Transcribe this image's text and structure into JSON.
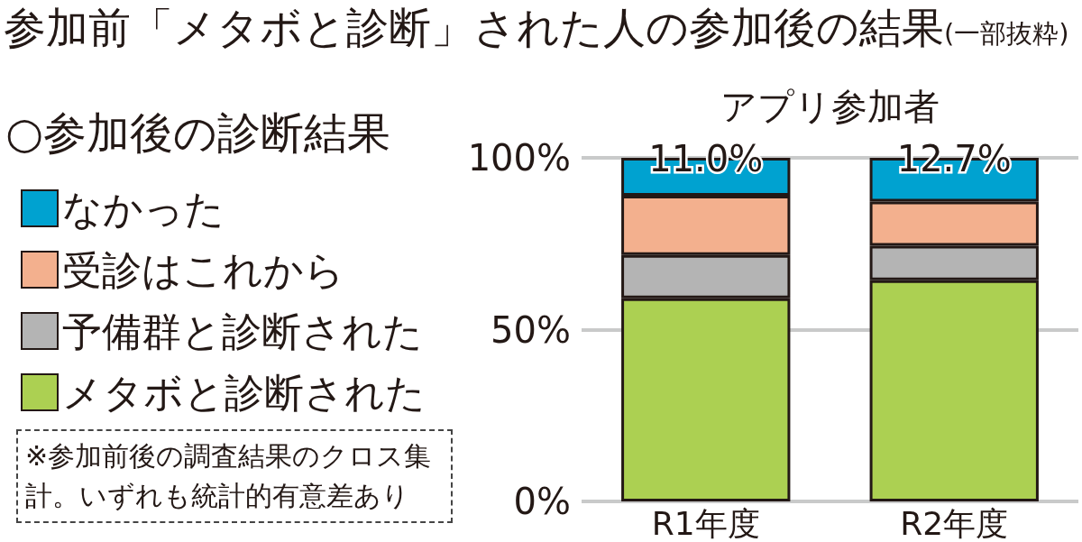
{
  "chart_data": {
    "type": "bar",
    "title": "参加前「メタボと診断」された人の参加後の結果",
    "subtitle": "(一部抜粋)",
    "xlabel": "アプリ参加者",
    "legend_title": "○参加後の診断結果",
    "annotations": [
      "※参加前後の調査結果のクロス集計。いずれも統計的有意差あり"
    ],
    "categories": [
      "R1年度",
      "R2年度"
    ],
    "stacked": true,
    "series": [
      {
        "name": "メタボと診断された",
        "color": "#acd052",
        "values": [
          59.1,
          64.4
        ]
      },
      {
        "name": "予備群と診断された",
        "color": "#b4b4b4",
        "values": [
          12.6,
          10.0
        ]
      },
      {
        "name": "受診はこれから",
        "color": "#f3b08e",
        "values": [
          17.3,
          12.9
        ]
      },
      {
        "name": "なかった",
        "color": "#00a2d0",
        "values": [
          11.0,
          12.7
        ],
        "value_labels": [
          "11.0%",
          "12.7%"
        ]
      }
    ],
    "ylim": [
      0,
      100
    ],
    "yticks": [
      {
        "value": 0,
        "label": "0%"
      },
      {
        "value": 50,
        "label": "50%"
      },
      {
        "value": 100,
        "label": "100%"
      }
    ],
    "grid": "y",
    "legend": "left"
  }
}
